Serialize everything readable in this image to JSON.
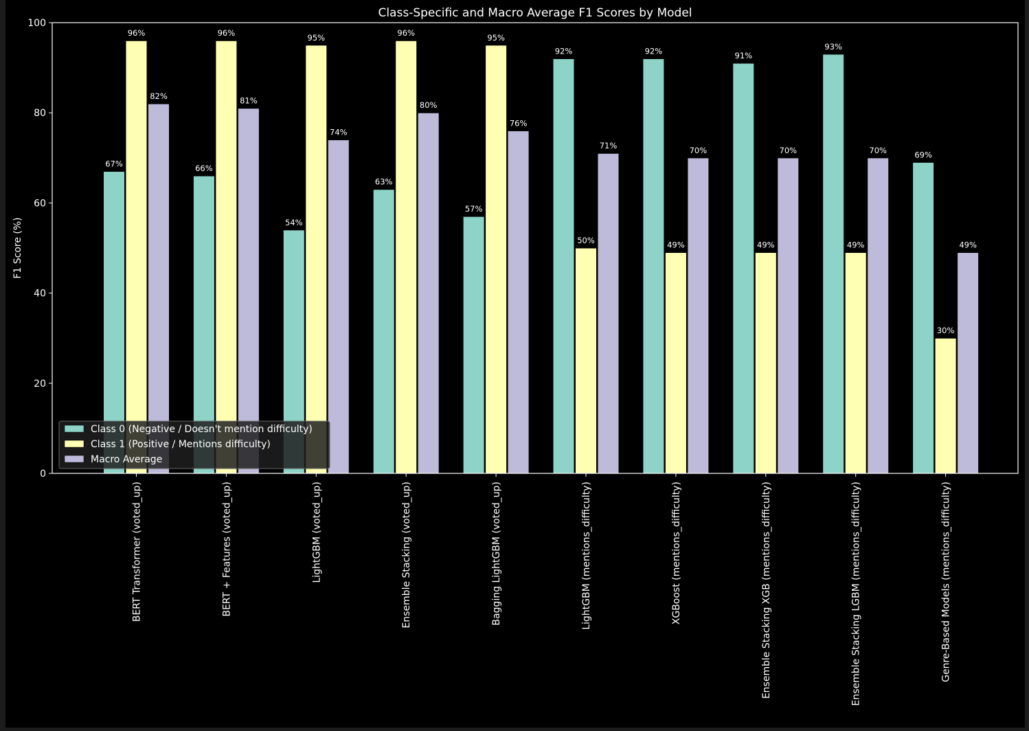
{
  "chart_data": {
    "type": "bar",
    "title": "Class-Specific and Macro Average F1 Scores by Model",
    "xlabel": "",
    "ylabel": "F1 Score (%)",
    "ylim": [
      0,
      100
    ],
    "yticks": [
      "0",
      "20",
      "40",
      "60",
      "80",
      "100"
    ],
    "grid": false,
    "legend_position": "lower-left",
    "categories": [
      "BERT Transformer (voted_up)",
      "BERT + Features (voted_up)",
      "LightGBM (voted_up)",
      "Ensemble Stacking (voted_up)",
      "Bagging LightGBM (voted_up)",
      "LightGBM (mentions_difficulty)",
      "XGBoost (mentions_difficulty)",
      "Ensemble Stacking XGB (mentions_difficulty)",
      "Ensemble Stacking LGBM (mentions_difficulty)",
      "Genre-Based Models (mentions_difficulty)"
    ],
    "series": [
      {
        "name": "Class 0 (Negative / Doesn't mention difficulty)",
        "color": "#8dd3c7",
        "values": [
          67,
          66,
          54,
          63,
          57,
          92,
          92,
          91,
          93,
          69
        ],
        "labels": [
          "67%",
          "66%",
          "54%",
          "63%",
          "57%",
          "92%",
          "92%",
          "91%",
          "93%",
          "69%"
        ]
      },
      {
        "name": "Class 1 (Positive / Mentions difficulty)",
        "color": "#ffffb3",
        "values": [
          96,
          96,
          95,
          96,
          95,
          50,
          49,
          49,
          49,
          30
        ],
        "labels": [
          "96%",
          "96%",
          "95%",
          "96%",
          "95%",
          "50%",
          "49%",
          "49%",
          "49%",
          "30%"
        ]
      },
      {
        "name": "Macro Average",
        "color": "#bebada",
        "values": [
          82,
          81,
          74,
          80,
          76,
          71,
          70,
          70,
          70,
          49
        ],
        "labels": [
          "82%",
          "81%",
          "74%",
          "80%",
          "76%",
          "71%",
          "70%",
          "70%",
          "70%",
          "49%"
        ]
      }
    ]
  }
}
